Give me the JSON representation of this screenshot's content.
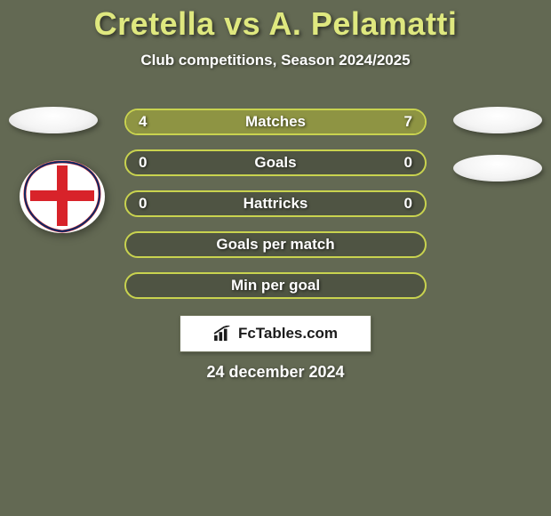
{
  "page": {
    "title": "Cretella vs A. Pelamatti",
    "subtitle": "Club competitions, Season 2024/2025",
    "date": "24 december 2024",
    "background_color": "#636953",
    "accent_color": "#dfe87f",
    "text_color": "#ffffff"
  },
  "branding": {
    "label": "FcTables.com"
  },
  "players": {
    "left": {
      "name": "Cretella",
      "club_badge_colors": {
        "base": "#ffffff",
        "cross": "#d8232a",
        "outline": "#0c2a66"
      }
    },
    "right": {
      "name": "A. Pelamatti"
    }
  },
  "stats": {
    "bar_border_color": "#c9d34f",
    "bar_fill_color": "#8e9443",
    "bar_bg_color": "#4f5443",
    "rows": [
      {
        "label": "Matches",
        "left": "4",
        "right": "7",
        "left_pct": 36,
        "right_pct": 64
      },
      {
        "label": "Goals",
        "left": "0",
        "right": "0",
        "left_pct": 0,
        "right_pct": 0
      },
      {
        "label": "Hattricks",
        "left": "0",
        "right": "0",
        "left_pct": 0,
        "right_pct": 0
      },
      {
        "label": "Goals per match",
        "left": "",
        "right": "",
        "left_pct": 0,
        "right_pct": 0
      },
      {
        "label": "Min per goal",
        "left": "",
        "right": "",
        "left_pct": 0,
        "right_pct": 0
      }
    ]
  }
}
